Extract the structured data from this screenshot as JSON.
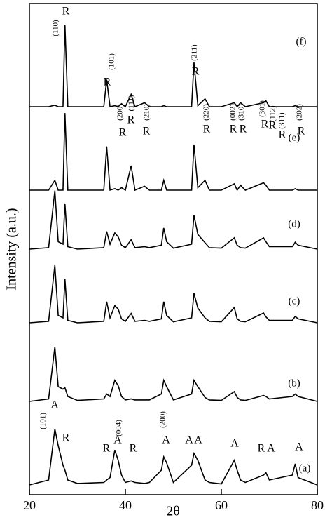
{
  "chart_data": {
    "type": "line",
    "xlabel": "2θ",
    "ylabel": "Intensity (a.u.)",
    "x": [
      20,
      24,
      25.3,
      26,
      27.0,
      27.4,
      28,
      30,
      35.5,
      36.1,
      36.8,
      37.8,
      38.5,
      39.2,
      40,
      41.2,
      42,
      44.0,
      45,
      47.5,
      48.0,
      48.6,
      50,
      53.8,
      54.3,
      55.1,
      56.6,
      57.5,
      60,
      62.7,
      63.3,
      64.0,
      65,
      68.8,
      69.3,
      70,
      74.8,
      75.4,
      76,
      80
    ],
    "series": [
      {
        "name": "(f)",
        "color": "#000000",
        "values": [
          79,
          79,
          79.3,
          79,
          79,
          95.7,
          79,
          79,
          79,
          84.5,
          79,
          79.2,
          79,
          79.6,
          79,
          81.5,
          79,
          79.8,
          79,
          79,
          79.2,
          79,
          79,
          79,
          88,
          79.2,
          80.6,
          79,
          79,
          79.8,
          79,
          79.8,
          79,
          79.8,
          80.2,
          79,
          79,
          79.2,
          79,
          79
        ]
      },
      {
        "name": "(e)",
        "color": "#000000",
        "values": [
          62,
          62,
          64,
          62,
          62,
          77.7,
          62,
          62,
          62,
          70.9,
          62,
          62.3,
          62,
          62.5,
          62,
          67,
          62,
          62.8,
          62,
          62,
          64,
          62,
          62,
          62,
          71.3,
          62.5,
          64,
          62,
          62,
          63.3,
          62,
          63,
          62,
          63.5,
          63,
          62,
          62,
          62.3,
          62,
          62
        ]
      },
      {
        "name": "(d)",
        "color": "#000000",
        "values": [
          50,
          50.3,
          61.9,
          51.5,
          51,
          59.3,
          50.5,
          50,
          50.3,
          53.6,
          51,
          53.3,
          52.5,
          50.8,
          50.3,
          51.9,
          50.3,
          50.5,
          50.3,
          50.8,
          54.3,
          51.5,
          50.2,
          51,
          56.9,
          53,
          51.3,
          50.3,
          50.2,
          52.3,
          50.8,
          50.3,
          50.2,
          52.3,
          51.5,
          50.5,
          50.5,
          51.4,
          50.8,
          50
        ]
      },
      {
        "name": "(c)",
        "color": "#000000",
        "values": [
          35,
          35.3,
          46.7,
          36.5,
          36,
          43.9,
          35.5,
          35,
          35.3,
          39.3,
          36,
          38.5,
          37.8,
          35.8,
          35.3,
          36.9,
          35.3,
          35.5,
          35.3,
          35.8,
          39.3,
          36.5,
          35.2,
          36,
          41,
          38,
          36,
          35.3,
          35.2,
          38.1,
          35.8,
          35.3,
          35.2,
          37,
          36.2,
          35.5,
          35.5,
          36.3,
          35.8,
          35
        ]
      },
      {
        "name": "(b)",
        "color": "#000000",
        "values": [
          19,
          19.5,
          30.1,
          22,
          21.5,
          21.8,
          20,
          19.2,
          19.5,
          20.5,
          20,
          23.3,
          22.2,
          20,
          19.3,
          19.5,
          19.3,
          19.3,
          19.3,
          20.5,
          23.3,
          22,
          19.3,
          20.5,
          23.3,
          22,
          19.8,
          19.3,
          19.2,
          21,
          19.8,
          19.3,
          19.2,
          20.2,
          20,
          19.5,
          20,
          20.5,
          20,
          19
        ]
      },
      {
        "name": "(a)",
        "color": "#000000",
        "values": [
          2,
          3,
          13.4,
          10,
          6,
          5,
          3,
          2.3,
          2.5,
          3,
          3.5,
          9.1,
          7,
          4,
          2.5,
          2.8,
          2.5,
          2.3,
          2.5,
          5,
          7.7,
          6.5,
          2.5,
          6,
          8.4,
          7,
          3,
          2.5,
          2.2,
          7,
          5,
          3,
          2.5,
          4,
          4.5,
          3,
          4,
          6.3,
          3.5,
          2
        ]
      }
    ],
    "xlim": [
      20,
      80
    ],
    "xticks": [
      20,
      40,
      60,
      80
    ],
    "ylim": [
      0,
      100
    ],
    "annotations": [
      "(110)",
      "R",
      "(101)",
      "R",
      "(200)",
      "R",
      "(111)",
      "R",
      "(210)",
      "R",
      "(211)",
      "R",
      "(220)",
      "R",
      "(002)",
      "(310)",
      "R",
      "R",
      "(301)",
      "(112)",
      "(311)",
      "R",
      "R",
      "R",
      "(202)",
      "R",
      "(101)",
      "A",
      "R",
      "(004)",
      "A",
      "R",
      "R",
      "(200)",
      "A",
      "A",
      "A",
      "A",
      "R",
      "A",
      "A"
    ]
  }
}
